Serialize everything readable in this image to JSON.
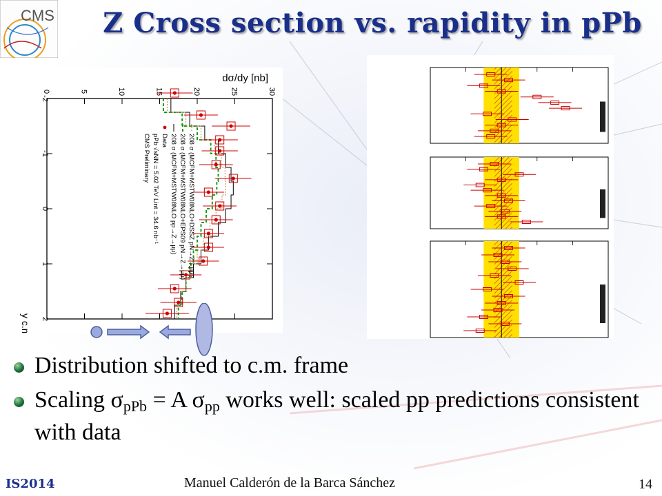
{
  "slide": {
    "logo_text": "CMS",
    "title": "Z Cross section vs. rapidity in pPb",
    "bullets": [
      {
        "before": "Distribution shifted to c.m. frame",
        "sigma1": "",
        "sub1": "",
        "mid": "",
        "sigma2": "",
        "sub2": "",
        "after": ""
      },
      {
        "before": "Scaling ",
        "sigma1": "σ",
        "sub1": "pPb",
        "mid": " = A ",
        "sigma2": "σ",
        "sub2": "pp",
        "after": " works well: scaled pp predictions consistent with data"
      }
    ],
    "footer": {
      "conference": "IS2014",
      "author": "Manuel Calderón de la Barca Sánchez",
      "page": "14"
    }
  },
  "colors": {
    "title": "#1a2f8a",
    "data_points": "#cc0000",
    "eps09_line": "#1a9a1a",
    "ratio_band": "#ffe000",
    "ratio_hatch": "#e07010",
    "arrow_fill": "#9aaade"
  },
  "chart_data": {
    "type": "scatter",
    "xlabel": "y c.m.",
    "ylabel": "dσ/dy [nb]",
    "xlim": [
      -2,
      2
    ],
    "ylim": [
      0,
      30
    ],
    "x_ticks": [
      "-2",
      "-1",
      "0",
      "1",
      "2"
    ],
    "y_ticks": [
      "0",
      "5",
      "10",
      "15",
      "20",
      "25",
      "30"
    ],
    "legend": [
      "CMS Preliminary",
      "pPb √sNN = 5.02 TeV Lint = 34.6 nb⁻¹",
      "Data",
      "208 σ (MCFM+MSTW08NLO pp→Z→μμ)",
      "208 σ (MCFM+MSTW08NLO+EPS09 pN→Z→μμ)",
      "208 σ (MCFM+MSTW08NLO+DSSZ pN→Z→μμ)"
    ],
    "series": [
      {
        "name": "Data",
        "x": [
          -2.1,
          -1.7,
          -1.5,
          -1.25,
          -1.05,
          -0.8,
          -0.55,
          -0.3,
          -0.05,
          0.2,
          0.45,
          0.7,
          0.95,
          1.2,
          1.45,
          1.7,
          1.9
        ],
        "y": [
          17.0,
          20.5,
          24.5,
          23.0,
          23.0,
          22.5,
          24.8,
          21.5,
          23.0,
          22.5,
          21.5,
          21.5,
          20.8,
          18.5,
          17.0,
          17.5,
          16.0
        ],
        "yerr": [
          1.5,
          1.4,
          1.6,
          1.5,
          1.5,
          1.4,
          1.5,
          1.3,
          1.4,
          1.4,
          1.3,
          1.3,
          1.3,
          1.3,
          1.4,
          1.5,
          1.8
        ]
      },
      {
        "name": "208 σ (MCFM+MSTW08NLO pp→Z→μμ)",
        "x": [
          -2.0,
          -1.75,
          -1.5,
          -1.25,
          -1.0,
          -0.75,
          -0.5,
          -0.25,
          0.0,
          0.25,
          0.5,
          0.75,
          1.0,
          1.25,
          1.5,
          1.75,
          2.0
        ],
        "y": [
          16.5,
          19.0,
          21.0,
          22.8,
          23.8,
          24.5,
          24.8,
          24.5,
          23.8,
          22.8,
          21.5,
          20.5,
          19.5,
          18.5,
          17.8,
          17.0,
          16.5
        ]
      },
      {
        "name": "208 σ (MCFM+MSTW08NLO+EPS09 pN→Z→μμ)",
        "x": [
          -2.0,
          -1.75,
          -1.5,
          -1.25,
          -1.0,
          -0.75,
          -0.5,
          -0.25,
          0.0,
          0.25,
          0.5,
          0.75,
          1.0,
          1.25,
          1.5,
          1.75,
          2.0
        ],
        "y": [
          15.5,
          18.0,
          20.0,
          21.8,
          22.5,
          22.8,
          22.6,
          22.0,
          21.2,
          20.5,
          20.0,
          19.5,
          19.0,
          18.5,
          18.0,
          17.5,
          17.0
        ]
      },
      {
        "name": "208 σ (MCFM+MSTW08NLO+DSSZ pN→Z→μμ)",
        "x": [
          -2.0,
          -1.75,
          -1.5,
          -1.25,
          -1.0,
          -0.75,
          -0.5,
          -0.25,
          0.0,
          0.25,
          0.5,
          0.75,
          1.0,
          1.25,
          1.5,
          1.75,
          2.0
        ],
        "y": [
          16.0,
          18.5,
          20.5,
          22.3,
          23.2,
          23.7,
          23.8,
          23.3,
          22.5,
          21.7,
          20.8,
          20.0,
          19.2,
          18.5,
          17.9,
          17.3,
          16.8
        ]
      }
    ],
    "ratio_panels": {
      "x_range": [
        0.8,
        1.3
      ],
      "points_per_panel": [
        {
          "ratio": [
            0.97,
            1.02,
            0.95,
            1.0,
            1.1,
            1.15,
            1.18,
            0.96,
            1.03,
            1.0,
            0.98,
            0.97
          ]
        },
        {
          "ratio": [
            0.98,
            0.95,
            1.05,
            1.0,
            0.94,
            0.96,
            1.0,
            1.02,
            0.97,
            1.01,
            1.0,
            1.07
          ]
        },
        {
          "ratio": [
            1.02,
            0.99,
            1.01,
            1.03,
            0.98,
            1.05,
            0.96,
            1.02,
            1.0,
            0.99,
            0.95,
            1.01,
            0.94
          ]
        }
      ]
    }
  }
}
